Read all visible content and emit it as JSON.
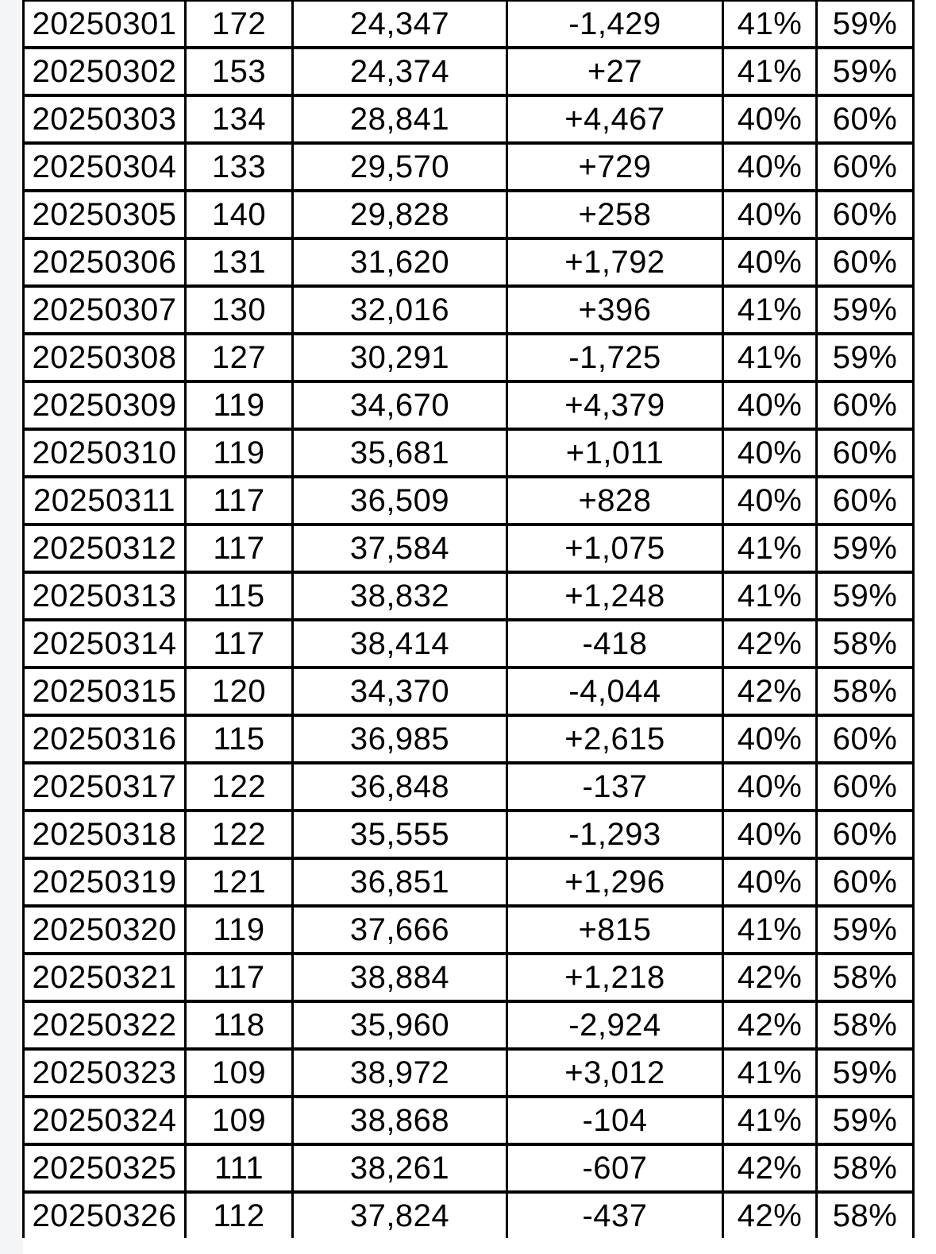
{
  "colors": {
    "blue": "#0000f0",
    "red": "#f40000",
    "text": "#000000",
    "border": "#000000",
    "gutter": "#f4f5f6",
    "page_bg": "#ffffff",
    "cell_bg": "#ffffff"
  },
  "table": {
    "rows": [
      {
        "date": "20250301",
        "date_color": "blue",
        "count": "172",
        "total": "24,347",
        "change": "-1,429",
        "change_color": "blue",
        "pct_a": "41%",
        "pct_b": "59%"
      },
      {
        "date": "20250302",
        "date_color": "red",
        "count": "153",
        "total": "24,374",
        "change": "+27",
        "change_color": "red",
        "pct_a": "41%",
        "pct_b": "59%"
      },
      {
        "date": "20250303",
        "date_color": "black",
        "count": "134",
        "total": "28,841",
        "change": "+4,467",
        "change_color": "red",
        "pct_a": "40%",
        "pct_b": "60%"
      },
      {
        "date": "20250304",
        "date_color": "black",
        "count": "133",
        "total": "29,570",
        "change": "+729",
        "change_color": "red",
        "pct_a": "40%",
        "pct_b": "60%"
      },
      {
        "date": "20250305",
        "date_color": "black",
        "count": "140",
        "total": "29,828",
        "change": "+258",
        "change_color": "red",
        "pct_a": "40%",
        "pct_b": "60%"
      },
      {
        "date": "20250306",
        "date_color": "black",
        "count": "131",
        "total": "31,620",
        "change": "+1,792",
        "change_color": "red",
        "pct_a": "40%",
        "pct_b": "60%"
      },
      {
        "date": "20250307",
        "date_color": "black",
        "count": "130",
        "total": "32,016",
        "change": "+396",
        "change_color": "red",
        "pct_a": "41%",
        "pct_b": "59%"
      },
      {
        "date": "20250308",
        "date_color": "blue",
        "count": "127",
        "total": "30,291",
        "change": "-1,725",
        "change_color": "blue",
        "pct_a": "41%",
        "pct_b": "59%"
      },
      {
        "date": "20250309",
        "date_color": "red",
        "count": "119",
        "total": "34,670",
        "change": "+4,379",
        "change_color": "red",
        "pct_a": "40%",
        "pct_b": "60%"
      },
      {
        "date": "20250310",
        "date_color": "black",
        "count": "119",
        "total": "35,681",
        "change": "+1,011",
        "change_color": "red",
        "pct_a": "40%",
        "pct_b": "60%"
      },
      {
        "date": "20250311",
        "date_color": "black",
        "count": "117",
        "total": "36,509",
        "change": "+828",
        "change_color": "red",
        "pct_a": "40%",
        "pct_b": "60%"
      },
      {
        "date": "20250312",
        "date_color": "black",
        "count": "117",
        "total": "37,584",
        "change": "+1,075",
        "change_color": "red",
        "pct_a": "41%",
        "pct_b": "59%"
      },
      {
        "date": "20250313",
        "date_color": "black",
        "count": "115",
        "total": "38,832",
        "change": "+1,248",
        "change_color": "red",
        "pct_a": "41%",
        "pct_b": "59%"
      },
      {
        "date": "20250314",
        "date_color": "black",
        "count": "117",
        "total": "38,414",
        "change": "-418",
        "change_color": "blue",
        "pct_a": "42%",
        "pct_b": "58%"
      },
      {
        "date": "20250315",
        "date_color": "blue",
        "count": "120",
        "total": "34,370",
        "change": "-4,044",
        "change_color": "blue",
        "pct_a": "42%",
        "pct_b": "58%"
      },
      {
        "date": "20250316",
        "date_color": "red",
        "count": "115",
        "total": "36,985",
        "change": "+2,615",
        "change_color": "red",
        "pct_a": "40%",
        "pct_b": "60%"
      },
      {
        "date": "20250317",
        "date_color": "black",
        "count": "122",
        "total": "36,848",
        "change": "-137",
        "change_color": "blue",
        "pct_a": "40%",
        "pct_b": "60%"
      },
      {
        "date": "20250318",
        "date_color": "black",
        "count": "122",
        "total": "35,555",
        "change": "-1,293",
        "change_color": "blue",
        "pct_a": "40%",
        "pct_b": "60%"
      },
      {
        "date": "20250319",
        "date_color": "black",
        "count": "121",
        "total": "36,851",
        "change": "+1,296",
        "change_color": "red",
        "pct_a": "40%",
        "pct_b": "60%"
      },
      {
        "date": "20250320",
        "date_color": "black",
        "count": "119",
        "total": "37,666",
        "change": "+815",
        "change_color": "red",
        "pct_a": "41%",
        "pct_b": "59%"
      },
      {
        "date": "20250321",
        "date_color": "black",
        "count": "117",
        "total": "38,884",
        "change": "+1,218",
        "change_color": "red",
        "pct_a": "42%",
        "pct_b": "58%"
      },
      {
        "date": "20250322",
        "date_color": "blue",
        "count": "118",
        "total": "35,960",
        "change": "-2,924",
        "change_color": "blue",
        "pct_a": "42%",
        "pct_b": "58%"
      },
      {
        "date": "20250323",
        "date_color": "red",
        "count": "109",
        "total": "38,972",
        "change": "+3,012",
        "change_color": "red",
        "pct_a": "41%",
        "pct_b": "59%"
      },
      {
        "date": "20250324",
        "date_color": "black",
        "count": "109",
        "total": "38,868",
        "change": "-104",
        "change_color": "blue",
        "pct_a": "41%",
        "pct_b": "59%"
      },
      {
        "date": "20250325",
        "date_color": "black",
        "count": "111",
        "total": "38,261",
        "change": "-607",
        "change_color": "blue",
        "pct_a": "42%",
        "pct_b": "58%"
      },
      {
        "date": "20250326",
        "date_color": "black",
        "count": "112",
        "total": "37,824",
        "change": "-437",
        "change_color": "blue",
        "pct_a": "42%",
        "pct_b": "58%"
      }
    ]
  }
}
